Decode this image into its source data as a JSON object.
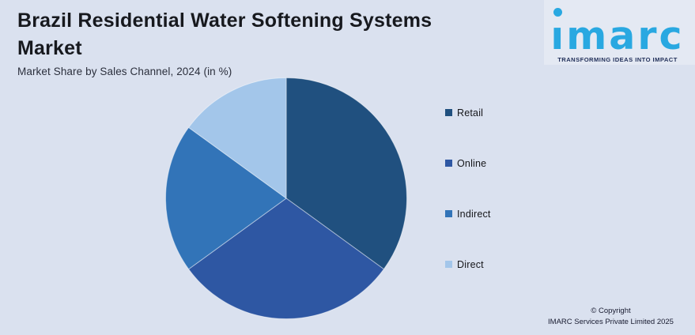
{
  "header": {
    "title": "Brazil Residential Water Softening Systems Market",
    "subtitle": "Market Share by Sales Channel, 2024 (in %)"
  },
  "chart_data": {
    "type": "pie",
    "title": "Brazil Residential Water Softening Systems Market",
    "subtitle": "Market Share by Sales Channel, 2024 (in %)",
    "unit": "%",
    "categories": [
      "Retail",
      "Online",
      "Indirect",
      "Direct"
    ],
    "values": [
      35,
      30,
      20,
      15
    ],
    "colors": [
      "#20507f",
      "#2e57a3",
      "#3274b8",
      "#a3c6ea"
    ],
    "start_angle_deg": 0,
    "direction": "clockwise",
    "legend_position": "right",
    "data_labels": false
  },
  "branding": {
    "logo_text": "ımarc",
    "logo_tagline": "TRANSFORMING IDEAS INTO IMPACT",
    "logo_color": "#29a8e1",
    "tagline_color": "#22305a"
  },
  "footer": {
    "copyright_line1": "© Copyright",
    "copyright_line2": "IMARC Services Private Limited 2025"
  },
  "theme": {
    "background": "#dae1ef",
    "title_color": "#17191e"
  }
}
